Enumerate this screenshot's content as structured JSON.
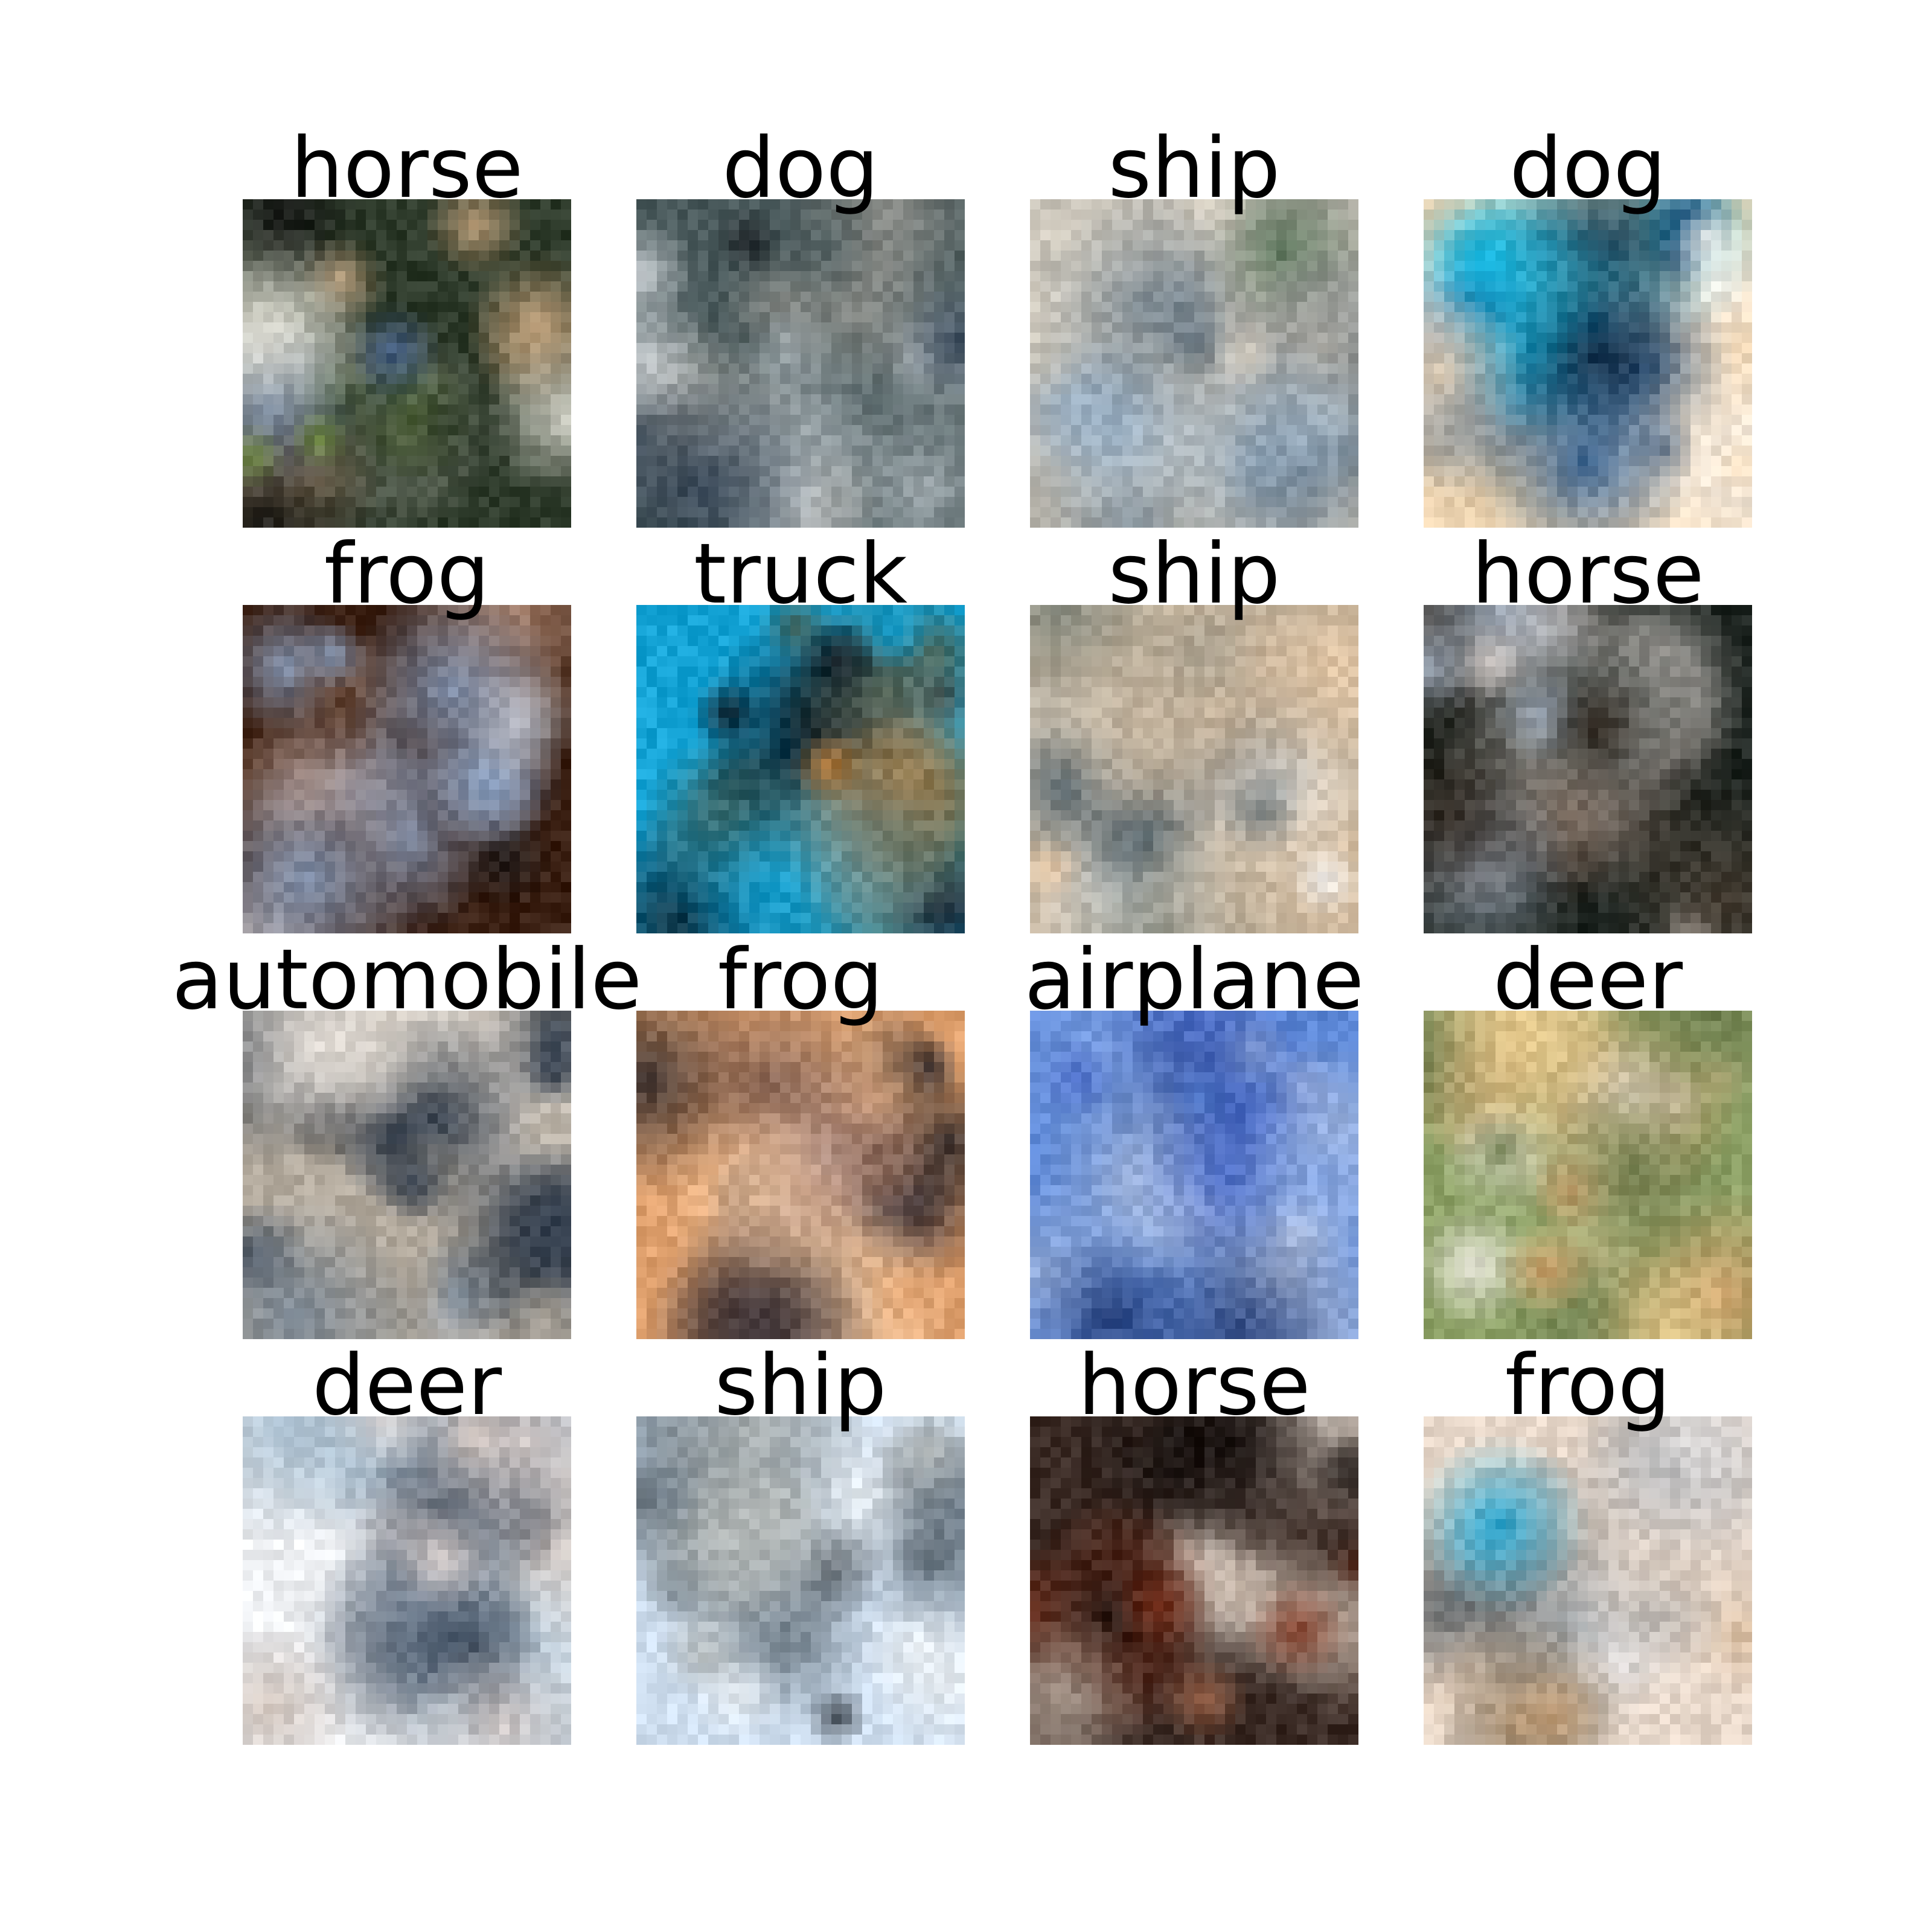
{
  "figure": {
    "background": "#ffffff",
    "label_color": "#000000",
    "grid": {
      "rows": 4,
      "cols": 4
    },
    "tiles": [
      {
        "label": "horse",
        "icon": "blurry-horse-photo",
        "palette": [
          "#2d3a2a",
          "#e8e6dc",
          "#141414",
          "#6f8b3c",
          "#c9a57d",
          "#3e5b86"
        ]
      },
      {
        "label": "dog",
        "icon": "blurry-dog-photo",
        "palette": [
          "#4a5a5c",
          "#d9dde1",
          "#101418",
          "#8e8f8a",
          "#aab3b8",
          "#2e3f52"
        ]
      },
      {
        "label": "ship",
        "icon": "blurry-ship-photo",
        "palette": [
          "#b9b6ad",
          "#eae1d2",
          "#3a4b5a",
          "#74838e",
          "#9ab0c4",
          "#4d6b4f"
        ]
      },
      {
        "label": "dog",
        "icon": "blurry-dog-photo",
        "palette": [
          "#f1d7b5",
          "#1b4d83",
          "#10b5e0",
          "#0d1d33",
          "#d9c29d",
          "#f5f1ec"
        ]
      },
      {
        "label": "frog",
        "icon": "blurry-frog-photo",
        "palette": [
          "#3a1f12",
          "#6e4a35",
          "#b88f78",
          "#f4eef0",
          "#1d1d1f",
          "#8fa6c8"
        ]
      },
      {
        "label": "truck",
        "icon": "blurry-truck-photo",
        "palette": [
          "#15a4d6",
          "#1d2b3f",
          "#f3f3f5",
          "#4d5b48",
          "#d68a3a",
          "#0c1017"
        ]
      },
      {
        "label": "ship",
        "icon": "blurry-ship-photo",
        "palette": [
          "#c8b7a0",
          "#e7c8a5",
          "#7a8178",
          "#f3f5f7",
          "#42545f",
          "#a7a08f"
        ]
      },
      {
        "label": "horse",
        "icon": "blurry-horse-photo",
        "palette": [
          "#1f2622",
          "#4d4236",
          "#e5ddd8",
          "#7b6a5d",
          "#a9b6c7",
          "#30261d"
        ]
      },
      {
        "label": "automobile",
        "icon": "blurry-automobile-photo",
        "palette": [
          "#b3aa9d",
          "#2c3848",
          "#6f7f90",
          "#e3ddd6",
          "#10151c",
          "#8e8a82"
        ]
      },
      {
        "label": "frog",
        "icon": "blurry-frog-photo",
        "palette": [
          "#dfa06d",
          "#f3c8a0",
          "#3b3135",
          "#7a5a4e",
          "#a68b8b",
          "#222026"
        ]
      },
      {
        "label": "airplane",
        "icon": "blurry-airplane-photo",
        "palette": [
          "#5c87d6",
          "#7fa1e1",
          "#a1b6dd",
          "#233a72",
          "#c7d1e4",
          "#4667c4"
        ]
      },
      {
        "label": "deer",
        "icon": "blurry-deer-photo",
        "palette": [
          "#8ea267",
          "#c6b683",
          "#e7c98b",
          "#6b7a4c",
          "#d8a06b",
          "#f0ebe6"
        ]
      },
      {
        "label": "deer",
        "icon": "blurry-deer-photo",
        "palette": [
          "#eef0f3",
          "#e4d8d3",
          "#657487",
          "#2c3a4c",
          "#9eb6c9",
          "#c7b8ae"
        ]
      },
      {
        "label": "ship",
        "icon": "blurry-ship-photo",
        "palette": [
          "#cfdff0",
          "#e9eef2",
          "#7a8894",
          "#2a323a",
          "#b4b9b8",
          "#5f6d78"
        ]
      },
      {
        "label": "horse",
        "icon": "blurry-horse-photo",
        "palette": [
          "#3a2a24",
          "#7a2f1a",
          "#e9dfd5",
          "#a86a4e",
          "#c4b2a4",
          "#1a1412"
        ]
      },
      {
        "label": "frog",
        "icon": "blurry-frog-photo",
        "palette": [
          "#e7d7c9",
          "#0f2a3d",
          "#18a1d0",
          "#3f4a52",
          "#c7a178",
          "#f3efee"
        ]
      }
    ]
  }
}
